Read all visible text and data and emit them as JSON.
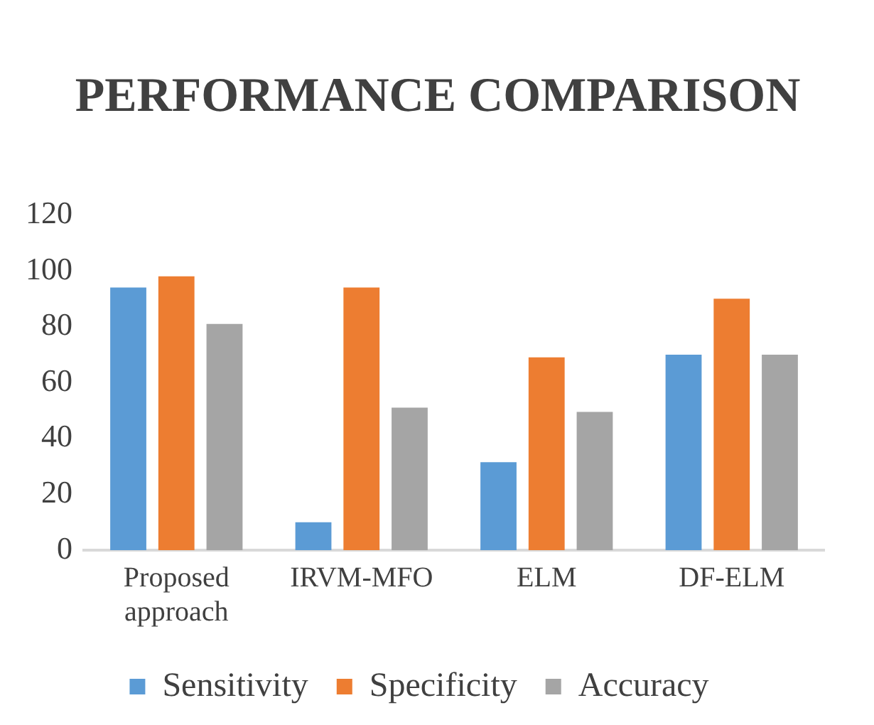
{
  "chart_data": {
    "type": "bar",
    "title": "PERFORMANCE COMPARISON",
    "categories": [
      "Proposed approach",
      "IRVM-MFO",
      "ELM",
      "DF-ELM"
    ],
    "series": [
      {
        "name": "Sensitivity",
        "color": "#5b9bd5",
        "values": [
          94,
          10,
          31.5,
          70
        ]
      },
      {
        "name": "Specificity",
        "color": "#ed7d31",
        "values": [
          98,
          94,
          69,
          90
        ]
      },
      {
        "name": "Accuracy",
        "color": "#a5a5a5",
        "values": [
          81,
          51,
          49.5,
          70
        ]
      }
    ],
    "ylim": [
      0,
      120
    ],
    "yticks": [
      0,
      20,
      40,
      60,
      80,
      100,
      120
    ],
    "grid": false,
    "legend": "bottom"
  }
}
